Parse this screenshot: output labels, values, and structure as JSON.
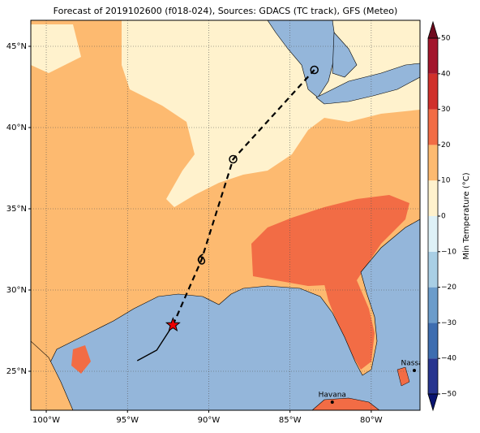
{
  "title": "Forecast of 2019102600 (f018-024), Sources: GDACS (TC track), GFS (Meteo)",
  "extent": {
    "lon": [
      -100.95,
      -77.0
    ],
    "lat": [
      22.6,
      46.6
    ]
  },
  "lon_ticks": [
    {
      "value": -100,
      "label": "100°W"
    },
    {
      "value": -95,
      "label": "95°W"
    },
    {
      "value": -90,
      "label": "90°W"
    },
    {
      "value": -85,
      "label": "85°W"
    },
    {
      "value": -80,
      "label": "80°W"
    }
  ],
  "lat_ticks": [
    {
      "value": 25,
      "label": "25°N"
    },
    {
      "value": 30,
      "label": "30°N"
    },
    {
      "value": 35,
      "label": "35°N"
    },
    {
      "value": 40,
      "label": "40°N"
    },
    {
      "value": 45,
      "label": "45°N"
    }
  ],
  "grid": true,
  "colorbar": {
    "label": "Min Temperature (°C)",
    "lim": [
      -50,
      50
    ],
    "ticks": [
      {
        "value": -50,
        "label": "−50"
      },
      {
        "value": -40,
        "label": "−40"
      },
      {
        "value": -30,
        "label": "−30"
      },
      {
        "value": -20,
        "label": "−20"
      },
      {
        "value": -10,
        "label": "−10"
      },
      0,
      10,
      20,
      30,
      40,
      50
    ],
    "colors": [
      "#27348f",
      "#3d6db0",
      "#6b9ccb",
      "#a9cfe5",
      "#def1f7",
      "#fff2cd",
      "#fdba70",
      "#f26c45",
      "#d0302b",
      "#a3152c"
    ],
    "under": "#0a1470",
    "over": "#6e0a1e"
  },
  "track": {
    "observed": {
      "lon": [
        -94.4,
        -93.2,
        -92.2
      ],
      "lat": [
        25.65,
        26.3,
        27.85
      ]
    },
    "forecast": {
      "lon": [
        -92.2,
        -90.45,
        -88.5,
        -83.5
      ],
      "lat": [
        27.85,
        31.85,
        38.05,
        43.55
      ]
    }
  },
  "cities": [
    {
      "name": "Nassau",
      "lon": -77.35,
      "lat": 25.05
    },
    {
      "name": "Havana",
      "lon": -82.4,
      "lat": 23.1
    }
  ]
}
